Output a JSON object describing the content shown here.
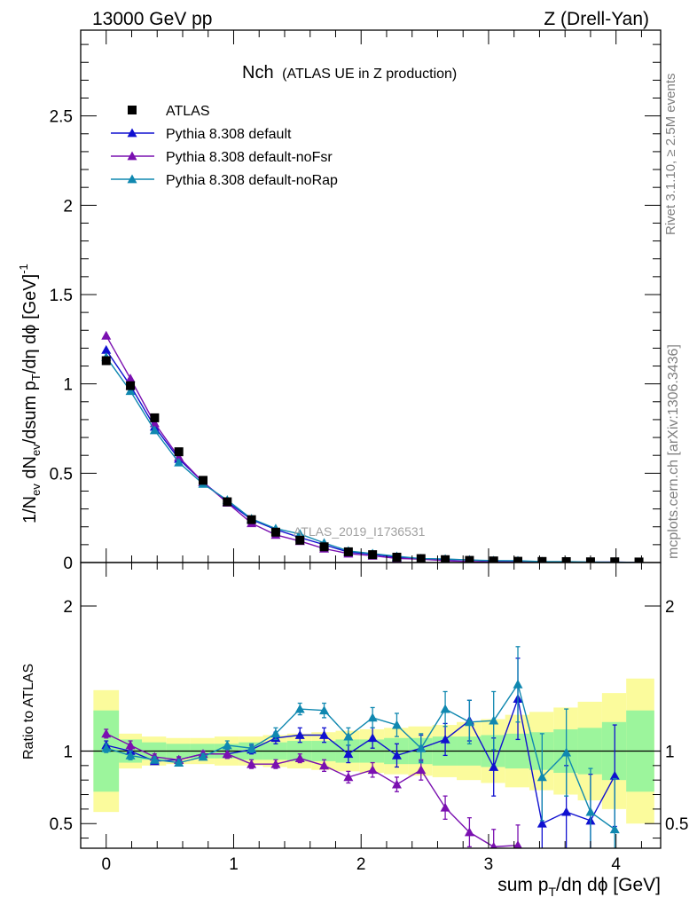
{
  "header": {
    "left": "13000 GeV pp",
    "right": "Z (Drell-Yan)"
  },
  "side_labels": {
    "rivet": "Rivet 3.1.10, ≥ 2.5M events",
    "mcplots": "mcplots.cern.ch [arXiv:1306.3436]"
  },
  "chart_data": {
    "type": "line",
    "title_main": "Nch",
    "title_sub": "(ATLAS UE in Z production)",
    "analysis_label": "ATLAS_2019_I1736531",
    "ylabel_main": "1/N_ev dN_ev/dsum p_T/dη dϕ [GeV]^-1",
    "ylabel_ratio": "Ratio to ATLAS",
    "xlabel": "sum p_T/dη dϕ [GeV]",
    "xlim": [
      -0.2,
      4.35
    ],
    "ylim_main": [
      0,
      2.98
    ],
    "ylim_ratio": [
      0.33,
      2.3
    ],
    "x_ticks": [
      "0",
      "1",
      "2",
      "3",
      "4"
    ],
    "y_ticks_main": [
      "0",
      "0.5",
      "1",
      "1.5",
      "2",
      "2.5"
    ],
    "y_ticks_ratio": [
      "0.5",
      "1",
      "2"
    ],
    "x": [
      0,
      0.19,
      0.38,
      0.57,
      0.76,
      0.95,
      1.14,
      1.33,
      1.52,
      1.71,
      1.9,
      2.09,
      2.28,
      2.47,
      2.66,
      2.85,
      3.04,
      3.23,
      3.42,
      3.61,
      3.8,
      3.99,
      4.18
    ],
    "data": {
      "name": "ATLAS",
      "values": [
        1.13,
        0.99,
        0.81,
        0.62,
        0.46,
        0.34,
        0.24,
        0.17,
        0.125,
        0.088,
        0.06,
        0.044,
        0.03,
        0.022,
        0.016,
        0.012,
        0.009,
        0.007,
        0.006,
        0.005,
        0.004,
        0.004,
        0.003
      ],
      "color": "#000000"
    },
    "series": [
      {
        "name": "Pythia 8.308 default",
        "color": "#1010d0",
        "values": [
          1.19,
          0.99,
          0.76,
          0.58,
          0.45,
          0.34,
          0.24,
          0.185,
          0.14,
          0.1,
          0.058,
          0.046,
          0.029,
          0.022,
          0.017,
          0.014,
          0.008,
          0.009,
          0.003,
          0.003,
          0.002,
          0.003,
          0.0
        ],
        "ratio": [
          1.04,
          1.0,
          0.93,
          0.94,
          0.98,
          0.98,
          1.01,
          1.09,
          1.11,
          1.11,
          0.98,
          1.09,
          0.97,
          1.02,
          1.08,
          1.21,
          0.89,
          1.36,
          0.5,
          0.58,
          0.52,
          0.83,
          null
        ],
        "ratio_err": [
          0.03,
          0.03,
          0.02,
          0.02,
          0.02,
          0.03,
          0.03,
          0.04,
          0.05,
          0.05,
          0.06,
          0.07,
          0.08,
          0.09,
          0.11,
          0.14,
          0.2,
          0.28,
          0.3,
          0.32,
          0.32,
          0.35,
          null
        ]
      },
      {
        "name": "Pythia 8.308 default-noFsr",
        "color": "#7a10b0",
        "values": [
          1.27,
          1.03,
          0.78,
          0.59,
          0.45,
          0.335,
          0.22,
          0.155,
          0.12,
          0.078,
          0.05,
          0.038,
          0.023,
          0.019,
          0.01,
          0.006,
          0.003,
          0.003,
          0.0,
          0.0,
          0.0,
          0.0,
          0.0
        ],
        "ratio": [
          1.12,
          1.04,
          0.96,
          0.94,
          0.98,
          0.98,
          0.91,
          0.91,
          0.95,
          0.9,
          0.82,
          0.87,
          0.77,
          0.87,
          0.61,
          0.44,
          0.34,
          0.35,
          null,
          null,
          null,
          null,
          null
        ],
        "ratio_err": [
          0.03,
          0.03,
          0.02,
          0.02,
          0.02,
          0.03,
          0.03,
          0.03,
          0.03,
          0.04,
          0.04,
          0.05,
          0.05,
          0.07,
          0.08,
          0.1,
          0.12,
          0.14,
          null,
          null,
          null,
          null,
          null
        ]
      },
      {
        "name": "Pythia 8.308 default-noRap",
        "color": "#1088b0",
        "values": [
          1.15,
          0.96,
          0.74,
          0.56,
          0.44,
          0.35,
          0.245,
          0.19,
          0.16,
          0.11,
          0.065,
          0.05,
          0.035,
          0.022,
          0.02,
          0.014,
          0.011,
          0.01,
          0.005,
          0.005,
          0.0025,
          0.0018,
          0.0
        ],
        "ratio": [
          1.02,
          0.97,
          0.94,
          0.92,
          0.96,
          1.04,
          1.02,
          1.12,
          1.29,
          1.28,
          1.1,
          1.23,
          1.18,
          1.02,
          1.29,
          1.2,
          1.21,
          1.46,
          0.82,
          0.99,
          0.58,
          0.46,
          null
        ],
        "ratio_err": [
          0.03,
          0.03,
          0.02,
          0.02,
          0.02,
          0.03,
          0.03,
          0.04,
          0.04,
          0.05,
          0.06,
          0.07,
          0.08,
          0.1,
          0.12,
          0.15,
          0.2,
          0.26,
          0.3,
          0.3,
          0.3,
          0.35,
          null
        ]
      }
    ],
    "ratio_band": {
      "edges": [
        -0.1,
        0.1,
        0.28,
        0.47,
        0.66,
        0.85,
        1.04,
        1.23,
        1.42,
        1.61,
        1.8,
        1.99,
        2.18,
        2.37,
        2.56,
        2.75,
        2.94,
        3.13,
        3.32,
        3.51,
        3.7,
        3.89,
        4.08,
        4.3
      ],
      "inner": [
        0.28,
        0.08,
        0.06,
        0.05,
        0.05,
        0.05,
        0.06,
        0.06,
        0.07,
        0.07,
        0.08,
        0.08,
        0.09,
        0.09,
        0.1,
        0.1,
        0.11,
        0.12,
        0.13,
        0.15,
        0.16,
        0.2,
        0.28
      ],
      "outer": [
        0.42,
        0.12,
        0.1,
        0.09,
        0.09,
        0.1,
        0.1,
        0.11,
        0.12,
        0.13,
        0.14,
        0.15,
        0.16,
        0.17,
        0.18,
        0.2,
        0.22,
        0.25,
        0.27,
        0.3,
        0.34,
        0.4,
        0.5
      ],
      "inner_color": "#9cf59c",
      "outer_color": "#fbfb9c"
    },
    "legend_position": "top-left"
  }
}
